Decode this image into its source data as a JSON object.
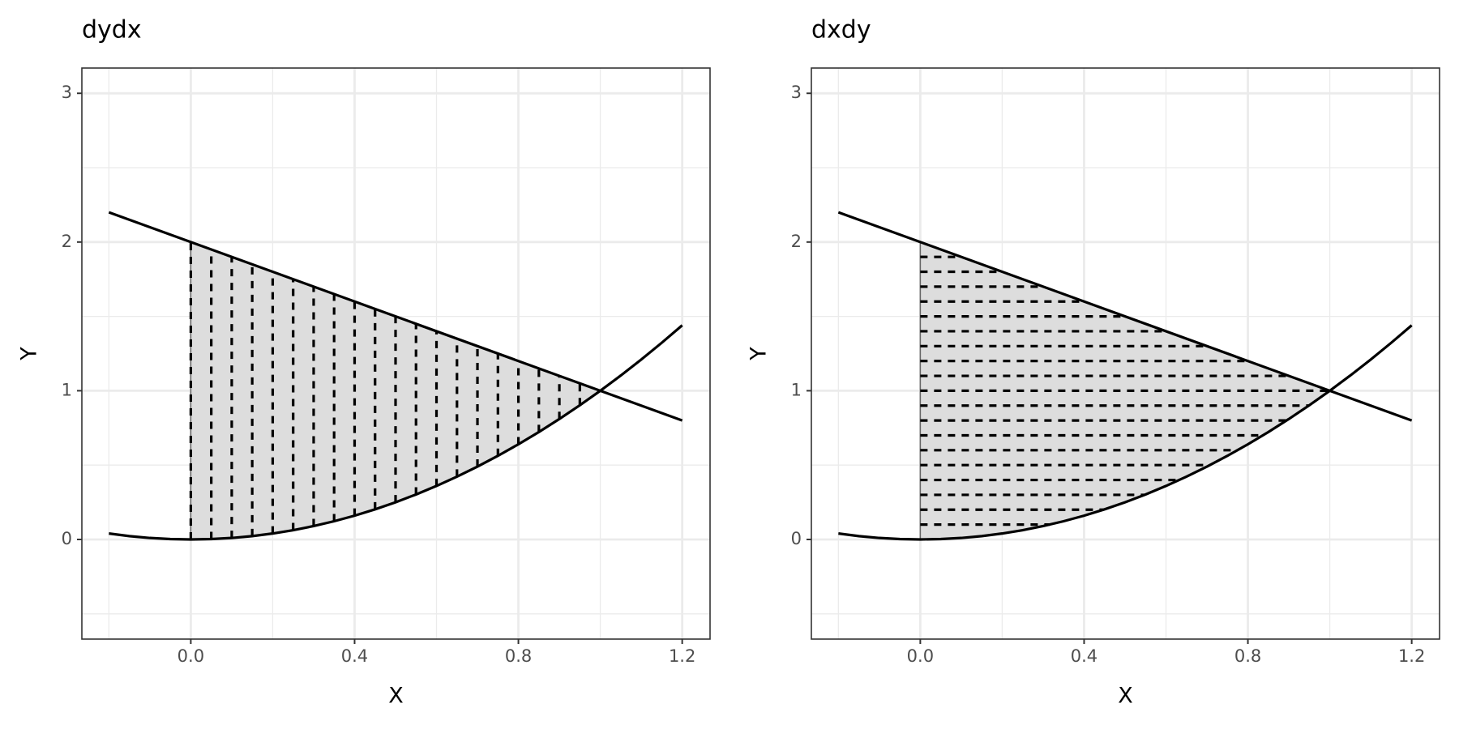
{
  "chart_data": [
    {
      "type": "line",
      "title": "dydx",
      "xlabel": "X",
      "ylabel": "Y",
      "xlim": [
        -0.266,
        1.268
      ],
      "ylim": [
        -0.67,
        3.17
      ],
      "xticks": [
        {
          "value": 0,
          "label": "0.0"
        },
        {
          "value": 0.4,
          "label": "0.4"
        },
        {
          "value": 0.8,
          "label": "0.8"
        },
        {
          "value": 1.2,
          "label": "1.2"
        }
      ],
      "yticks": [
        0,
        1,
        2,
        3
      ],
      "minor_xticks": [
        -0.2,
        0.2,
        0.6,
        1.0
      ],
      "minor_yticks": [
        -0.5,
        0.5,
        1.5,
        2.5
      ],
      "grid": true,
      "series": [
        {
          "color": "#000000",
          "x": [
            -0.2,
            -0.15,
            -0.1,
            -0.05,
            0,
            0.05,
            0.1,
            0.15,
            0.2,
            0.25,
            0.3,
            0.35,
            0.4,
            0.45,
            0.5,
            0.55,
            0.6,
            0.65,
            0.7,
            0.75,
            0.8,
            0.85,
            0.9,
            0.95,
            1,
            1.05,
            1.1,
            1.15,
            1.2
          ],
          "values": [
            0.04,
            0.0225,
            0.01,
            0.0025,
            0,
            0.0025,
            0.01,
            0.0225,
            0.04,
            0.0625,
            0.09,
            0.1225,
            0.16,
            0.2025,
            0.25,
            0.3025,
            0.36,
            0.4225,
            0.49,
            0.5625,
            0.64,
            0.7225,
            0.81,
            0.9025,
            1,
            1.1025,
            1.21,
            1.3225,
            1.44
          ]
        },
        {
          "color": "#000000",
          "x": [
            -0.2,
            1.2
          ],
          "values": [
            2.2,
            0.8
          ]
        }
      ],
      "area": {
        "color": "#dddddd",
        "x": [
          0,
          0.05,
          0.1,
          0.15,
          0.2,
          0.25,
          0.3,
          0.35,
          0.4,
          0.45,
          0.5,
          0.55,
          0.6,
          0.65,
          0.7,
          0.75,
          0.8,
          0.85,
          0.9,
          0.95,
          1
        ],
        "lower": [
          0,
          0.0025,
          0.01,
          0.0225,
          0.04,
          0.0625,
          0.09,
          0.1225,
          0.16,
          0.2025,
          0.25,
          0.3025,
          0.36,
          0.4225,
          0.49,
          0.5625,
          0.64,
          0.7225,
          0.81,
          0.9025,
          1
        ],
        "upper": [
          2,
          1.95,
          1.9,
          1.85,
          1.8,
          1.75,
          1.7,
          1.65,
          1.6,
          1.55,
          1.5,
          1.45,
          1.4,
          1.35,
          1.3,
          1.25,
          1.2,
          1.15,
          1.1,
          1.05,
          1
        ]
      },
      "rules": {
        "orientation": "vertical",
        "color": "#000000",
        "at": [
          0,
          0.05,
          0.1,
          0.15,
          0.2,
          0.25,
          0.3,
          0.35,
          0.4,
          0.45,
          0.5,
          0.55,
          0.6,
          0.65,
          0.7,
          0.75,
          0.8,
          0.85,
          0.9,
          0.95
        ],
        "from": [
          0,
          0.0025,
          0.01,
          0.0225,
          0.04,
          0.0625,
          0.09,
          0.1225,
          0.16,
          0.2025,
          0.25,
          0.3025,
          0.36,
          0.4225,
          0.49,
          0.5625,
          0.64,
          0.7225,
          0.81,
          0.9025
        ],
        "to": [
          2,
          1.95,
          1.9,
          1.85,
          1.8,
          1.75,
          1.7,
          1.65,
          1.6,
          1.55,
          1.5,
          1.45,
          1.4,
          1.35,
          1.3,
          1.25,
          1.2,
          1.15,
          1.1,
          1.05
        ]
      }
    },
    {
      "type": "line",
      "title": "dxdy",
      "xlabel": "X",
      "ylabel": "Y",
      "xlim": [
        -0.266,
        1.268
      ],
      "ylim": [
        -0.67,
        3.17
      ],
      "xticks": [
        {
          "value": 0,
          "label": "0.0"
        },
        {
          "value": 0.4,
          "label": "0.4"
        },
        {
          "value": 0.8,
          "label": "0.8"
        },
        {
          "value": 1.2,
          "label": "1.2"
        }
      ],
      "yticks": [
        0,
        1,
        2,
        3
      ],
      "minor_xticks": [
        -0.2,
        0.2,
        0.6,
        1.0
      ],
      "minor_yticks": [
        -0.5,
        0.5,
        1.5,
        2.5
      ],
      "grid": true,
      "series": [
        {
          "color": "#000000",
          "x": [
            -0.2,
            -0.15,
            -0.1,
            -0.05,
            0,
            0.05,
            0.1,
            0.15,
            0.2,
            0.25,
            0.3,
            0.35,
            0.4,
            0.45,
            0.5,
            0.55,
            0.6,
            0.65,
            0.7,
            0.75,
            0.8,
            0.85,
            0.9,
            0.95,
            1,
            1.05,
            1.1,
            1.15,
            1.2
          ],
          "values": [
            0.04,
            0.0225,
            0.01,
            0.0025,
            0,
            0.0025,
            0.01,
            0.0225,
            0.04,
            0.0625,
            0.09,
            0.1225,
            0.16,
            0.2025,
            0.25,
            0.3025,
            0.36,
            0.4225,
            0.49,
            0.5625,
            0.64,
            0.7225,
            0.81,
            0.9025,
            1,
            1.1025,
            1.21,
            1.3225,
            1.44
          ]
        },
        {
          "color": "#000000",
          "x": [
            -0.2,
            1.2
          ],
          "values": [
            2.2,
            0.8
          ]
        }
      ],
      "area": {
        "color": "#dddddd",
        "x": [
          0,
          0.05,
          0.1,
          0.15,
          0.2,
          0.25,
          0.3,
          0.35,
          0.4,
          0.45,
          0.5,
          0.55,
          0.6,
          0.65,
          0.7,
          0.75,
          0.8,
          0.85,
          0.9,
          0.95,
          1
        ],
        "lower": [
          0,
          0.0025,
          0.01,
          0.0225,
          0.04,
          0.0625,
          0.09,
          0.1225,
          0.16,
          0.2025,
          0.25,
          0.3025,
          0.36,
          0.4225,
          0.49,
          0.5625,
          0.64,
          0.7225,
          0.81,
          0.9025,
          1
        ],
        "upper": [
          2,
          1.95,
          1.9,
          1.85,
          1.8,
          1.75,
          1.7,
          1.65,
          1.6,
          1.55,
          1.5,
          1.45,
          1.4,
          1.35,
          1.3,
          1.25,
          1.2,
          1.15,
          1.1,
          1.05,
          1
        ]
      },
      "rules": {
        "orientation": "horizontal",
        "color": "#000000",
        "at": [
          0.1,
          0.2,
          0.3,
          0.4,
          0.5,
          0.6,
          0.7,
          0.8,
          0.9,
          1,
          1.1,
          1.2,
          1.3,
          1.4,
          1.5,
          1.6,
          1.7,
          1.8,
          1.9
        ],
        "from": [
          0,
          0,
          0,
          0,
          0,
          0,
          0,
          0,
          0,
          0,
          0,
          0,
          0,
          0,
          0,
          0,
          0,
          0,
          0
        ],
        "to": [
          0.316,
          0.447,
          0.548,
          0.632,
          0.707,
          0.775,
          0.837,
          0.894,
          0.949,
          1,
          0.9,
          0.8,
          0.7,
          0.6,
          0.5,
          0.4,
          0.3,
          0.2,
          0.1
        ]
      }
    }
  ]
}
